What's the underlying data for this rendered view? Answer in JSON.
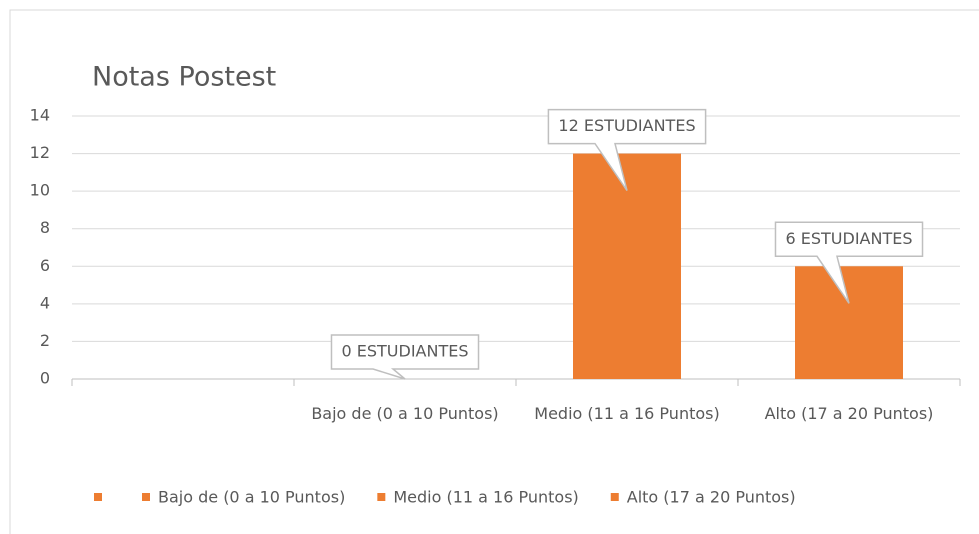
{
  "chart_data": {
    "type": "bar",
    "title": "Notas Postest",
    "categories": [
      null,
      "Bajo de (0 a 10 Puntos)",
      "Medio (11 a 16 Puntos)",
      "Alto (17 a 20 Puntos)"
    ],
    "values": [
      null,
      0,
      12,
      6
    ],
    "value_labels": [
      null,
      "0 ESTUDIANTES",
      "12 ESTUDIANTES",
      "6 ESTUDIANTES"
    ],
    "color": "#ed7d31",
    "ylim": [
      0,
      14
    ],
    "yticks": [
      0,
      2,
      4,
      6,
      8,
      10,
      12,
      14
    ],
    "grid": true,
    "legend": "bottom"
  }
}
